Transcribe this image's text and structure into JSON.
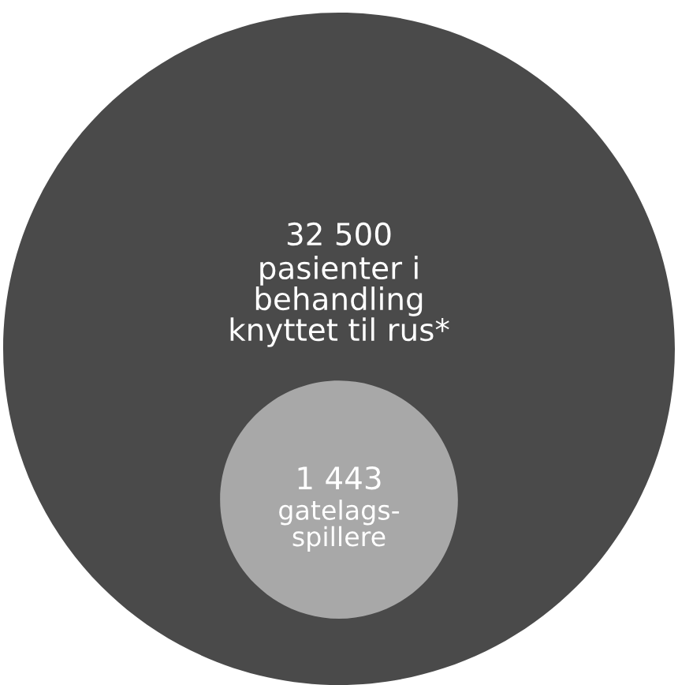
{
  "chart_data": {
    "type": "other",
    "categories": [
      "pasienter i\nbehandling\nknyttet til rus*",
      "gatelags-\nspillere"
    ],
    "values": [
      32500,
      1443
    ],
    "value_labels": [
      "32 500",
      "1 443"
    ],
    "colors": [
      "#4a4a4a",
      "#a8a8a8"
    ]
  }
}
